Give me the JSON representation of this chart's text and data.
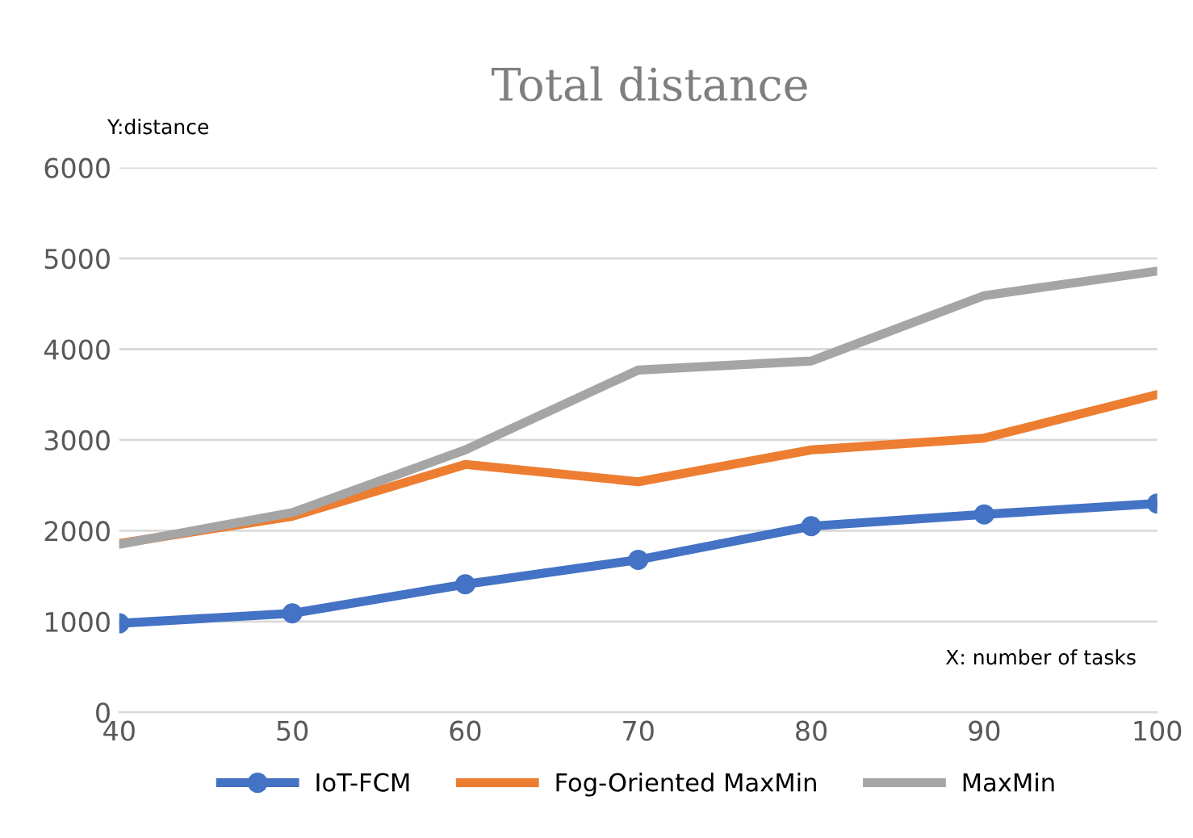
{
  "chart_data": {
    "type": "line",
    "title": "Total distance",
    "ylabel": "Y:distance",
    "xlabel": "X: number of tasks",
    "x": [
      40,
      50,
      60,
      70,
      80,
      90,
      100
    ],
    "series": [
      {
        "name": "IoT-FCM",
        "color": "#4472c4",
        "marker": "circle",
        "values": [
          980,
          1090,
          1410,
          1680,
          2050,
          2180,
          2300
        ]
      },
      {
        "name": "Fog-Oriented MaxMin",
        "color": "#ed7d31",
        "marker": "none",
        "values": [
          1860,
          2160,
          2730,
          2540,
          2890,
          3020,
          3500
        ]
      },
      {
        "name": "MaxMin",
        "color": "#a5a5a5",
        "marker": "none",
        "values": [
          1850,
          2200,
          2890,
          3770,
          3870,
          4590,
          4860
        ]
      }
    ],
    "xlim": [
      40,
      100
    ],
    "xticks": [
      40,
      50,
      60,
      70,
      80,
      90,
      100
    ],
    "ylim": [
      0,
      6000
    ],
    "yticks": [
      0,
      1000,
      2000,
      3000,
      4000,
      5000,
      6000
    ],
    "grid": "y",
    "legend": "bottom",
    "line_style": "solid"
  }
}
